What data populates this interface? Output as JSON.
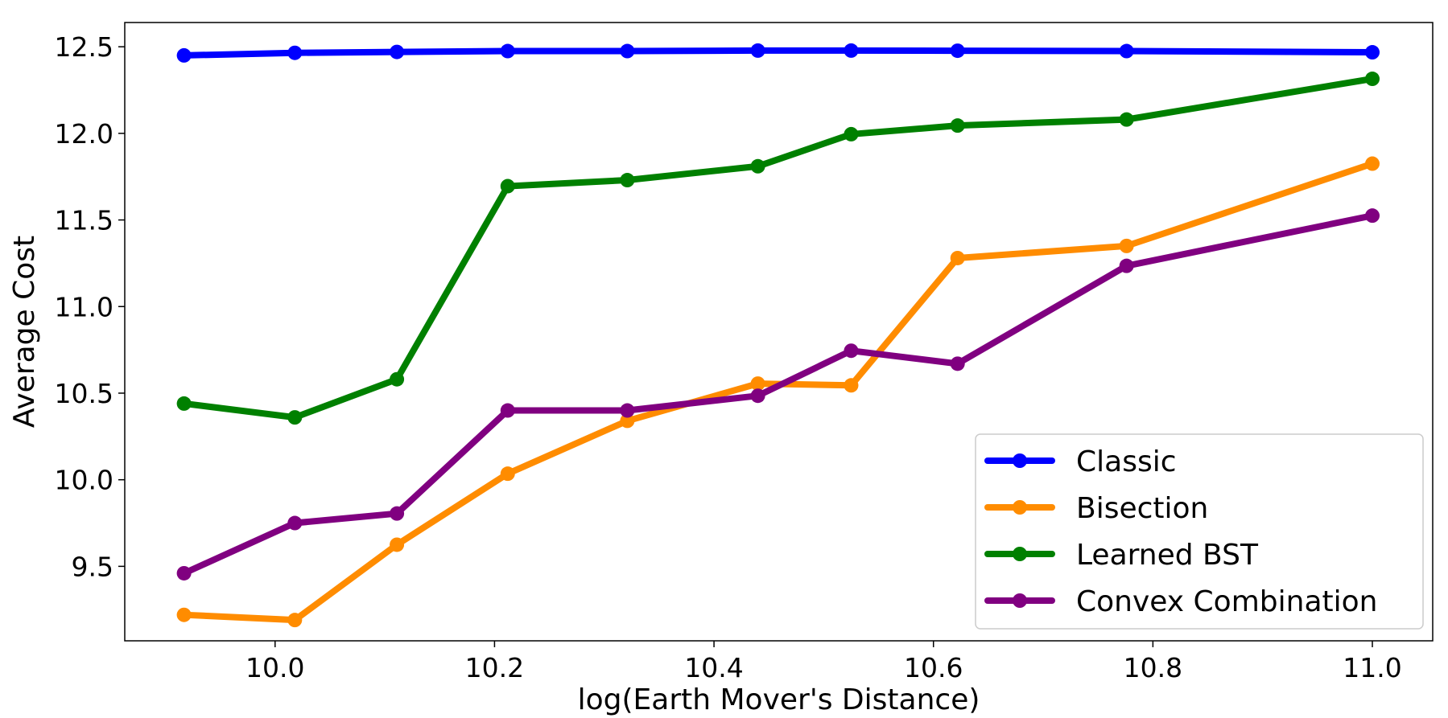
{
  "chart_data": {
    "type": "line",
    "title": "",
    "xlabel": "log(Earth Mover's Distance)",
    "ylabel": "Average Cost",
    "xlim": [
      9.863,
      11.055
    ],
    "ylim": [
      9.07,
      12.64
    ],
    "xticks": [
      "10.0",
      "10.2",
      "10.4",
      "10.6",
      "10.8",
      "11.0"
    ],
    "yticks": [
      "9.5",
      "10.0",
      "10.5",
      "11.0",
      "11.5",
      "12.0",
      "12.5"
    ],
    "grid": false,
    "legend_position": "lower-right",
    "x": [
      9.917,
      10.018,
      10.111,
      10.212,
      10.321,
      10.44,
      10.525,
      10.622,
      10.776,
      11.0
    ],
    "series": [
      {
        "name": "Classic",
        "color": "#0000ff",
        "values": [
          12.45,
          12.465,
          12.47,
          12.475,
          12.475,
          12.478,
          12.478,
          12.477,
          12.475,
          12.468
        ]
      },
      {
        "name": "Bisection",
        "color": "#ff8c00",
        "values": [
          9.22,
          9.19,
          9.625,
          10.035,
          10.34,
          10.555,
          10.545,
          11.28,
          11.35,
          11.825
        ]
      },
      {
        "name": "Learned BST",
        "color": "#008000",
        "values": [
          10.44,
          10.36,
          10.58,
          11.695,
          11.73,
          11.81,
          11.995,
          12.045,
          12.08,
          12.315
        ]
      },
      {
        "name": "Convex Combination",
        "color": "#800080",
        "values": [
          9.46,
          9.75,
          9.805,
          10.4,
          10.4,
          10.485,
          10.745,
          10.67,
          11.235,
          11.525
        ]
      }
    ]
  }
}
